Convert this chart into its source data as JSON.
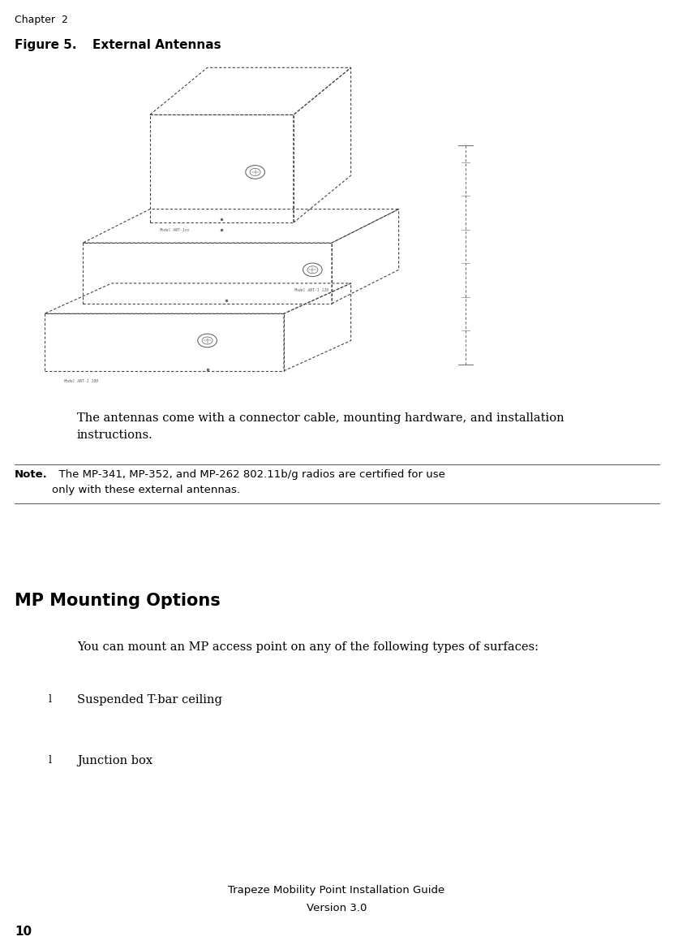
{
  "page_width": 8.31,
  "page_height": 11.59,
  "bg_color": "#ffffff",
  "text_color": "#000000",
  "header_text": "Chapter  2",
  "figure_label": "Figure 5.",
  "figure_title": "    External Antennas",
  "body_text_1": "The antennas come with a connector cable, mounting hardware, and installation\ninstructions.",
  "note_bold": "Note.",
  "note_rest": "  The MP-341, MP-352, and MP-262 802.11b/g radios are certified for use\nonly with these external antennas.",
  "section_title": "MP Mounting Options",
  "section_body": "You can mount an MP access point on any of the following types of surfaces:",
  "bullet_1": "Suspended T-bar ceiling",
  "bullet_2": "Junction box",
  "footer_line1": "Trapeze Mobility Point Installation Guide",
  "footer_line2": "Version 3.0",
  "page_num": "10"
}
